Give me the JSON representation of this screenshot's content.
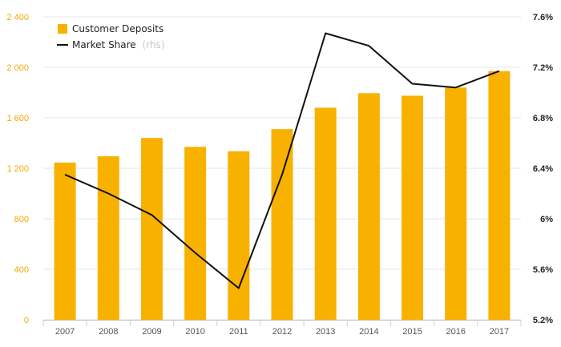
{
  "chart_data": {
    "type": "bar",
    "categories": [
      "2007",
      "2008",
      "2009",
      "2010",
      "2011",
      "2012",
      "2013",
      "2014",
      "2015",
      "2016",
      "2017"
    ],
    "series": [
      {
        "name": "Customer Deposits",
        "type": "bar",
        "axis": "left",
        "color": "#f9b100",
        "values": [
          1245,
          1295,
          1440,
          1370,
          1335,
          1510,
          1680,
          1795,
          1775,
          1840,
          1970
        ]
      },
      {
        "name": "Market Share",
        "name_suffix": "(rhs)",
        "type": "line",
        "axis": "right",
        "color": "#111111",
        "values": [
          6.35,
          6.2,
          6.03,
          5.73,
          5.45,
          6.35,
          7.47,
          7.37,
          7.07,
          7.04,
          7.17
        ]
      }
    ],
    "y_left": {
      "ylim": [
        0,
        2400
      ],
      "ticks": [
        0,
        400,
        800,
        1200,
        1600,
        2000,
        2400
      ],
      "tick_labels": [
        "0",
        "400",
        "800",
        "1 200",
        "1 600",
        "2 000",
        "2 400"
      ],
      "tick_color": "#f5a800"
    },
    "y_right": {
      "ylim": [
        5.2,
        7.6
      ],
      "ticks": [
        5.2,
        5.6,
        6.0,
        6.4,
        6.8,
        7.2,
        7.6
      ],
      "tick_labels": [
        "5.2%",
        "5.6%",
        "6%",
        "6.4%",
        "6.8%",
        "7.2%",
        "7.6%"
      ]
    },
    "title": "",
    "xlabel": "",
    "ylabel": "",
    "grid": true,
    "legend_position": "top-left"
  }
}
